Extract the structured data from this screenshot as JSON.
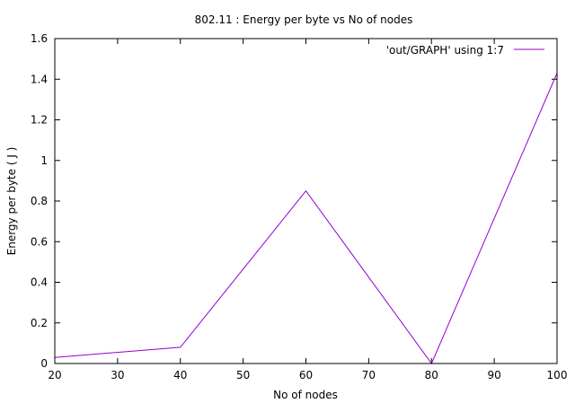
{
  "chart_data": {
    "type": "line",
    "title": "802.11 : Energy per byte vs No of nodes",
    "xlabel": "No of nodes",
    "ylabel": "Energy per byte ( J )",
    "xlim": [
      20,
      100
    ],
    "ylim": [
      0,
      1.6
    ],
    "x_ticks": [
      20,
      30,
      40,
      50,
      60,
      70,
      80,
      90,
      100
    ],
    "y_ticks": [
      0,
      0.2,
      0.4,
      0.6,
      0.8,
      1,
      1.2,
      1.4,
      1.6
    ],
    "grid": false,
    "legend_position": "top-right",
    "series": [
      {
        "name": "'out/GRAPH' using 1:7",
        "color": "#9400d3",
        "x": [
          20,
          40,
          60,
          80,
          100
        ],
        "y": [
          0.03,
          0.08,
          0.85,
          0.0,
          1.43
        ]
      }
    ]
  }
}
